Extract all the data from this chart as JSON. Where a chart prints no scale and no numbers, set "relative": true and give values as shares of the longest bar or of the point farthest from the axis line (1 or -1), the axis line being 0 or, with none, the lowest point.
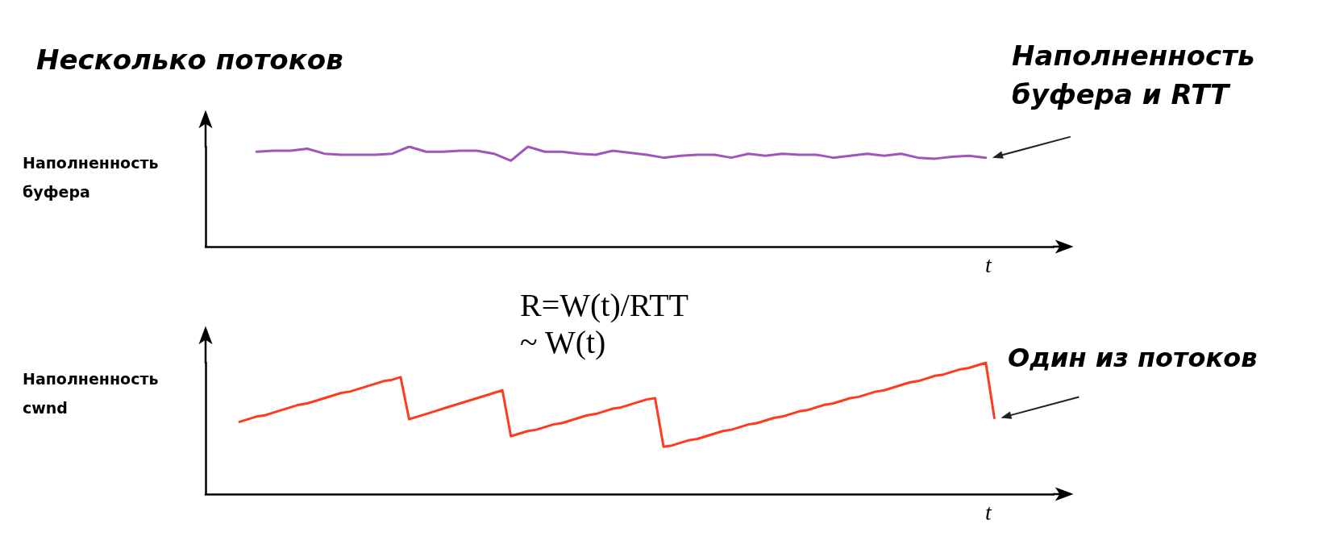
{
  "chart_data": [
    {
      "type": "line",
      "title": "Несколько потоков",
      "ylabel": "Наполненность буфера",
      "xlabel": "t",
      "relative": true,
      "tick_labels": false,
      "grid": false,
      "categories": [
        null,
        null,
        null,
        null,
        null,
        null,
        null,
        null,
        null,
        null,
        null,
        null,
        null,
        null,
        null,
        null,
        null,
        null,
        null,
        null,
        null,
        null,
        null,
        null,
        null,
        null,
        null,
        null,
        null,
        null,
        null,
        null,
        null,
        null,
        null,
        null,
        null,
        null,
        null,
        null,
        null,
        null,
        null,
        null,
        null,
        null,
        null,
        null,
        null,
        null,
        null
      ],
      "series": [
        {
          "color": "#a155b9",
          "values": [
            null,
            null,
            null,
            0.95,
            0.96,
            0.96,
            0.98,
            0.93,
            0.92,
            0.92,
            0.92,
            0.93,
            1,
            0.95,
            0.95,
            0.96,
            0.96,
            0.93,
            0.86,
            1,
            0.95,
            0.95,
            0.93,
            0.92,
            0.96,
            0.94,
            0.92,
            0.89,
            0.91,
            0.92,
            0.92,
            0.89,
            0.93,
            0.91,
            0.93,
            0.92,
            0.92,
            0.89,
            0.91,
            0.93,
            0.91,
            0.93,
            0.89,
            0.88,
            0.9,
            0.91,
            0.89,
            null,
            null,
            null,
            null
          ]
        }
      ],
      "annotations": [
        "Наполненность буфера и RTT"
      ]
    },
    {
      "type": "line",
      "ylabel": "Наполненность cwnd",
      "xlabel": "t",
      "relative": true,
      "tick_labels": false,
      "grid": false,
      "categories": [
        null,
        null,
        null,
        null,
        null,
        null,
        null,
        null,
        null,
        null,
        null,
        null,
        null,
        null,
        null,
        null,
        null,
        null,
        null,
        null,
        null,
        null,
        null,
        null,
        null,
        null,
        null,
        null,
        null,
        null,
        null,
        null,
        null,
        null,
        null,
        null,
        null,
        null,
        null,
        null,
        null,
        null,
        null,
        null,
        null,
        null,
        null,
        null,
        null,
        null,
        null,
        null,
        null,
        null,
        null,
        null,
        null,
        null,
        null,
        null,
        null,
        null,
        null,
        null,
        null,
        null,
        null,
        null,
        null,
        null,
        null,
        null,
        null,
        null,
        null,
        null,
        null,
        null,
        null,
        null,
        null,
        null,
        null,
        null,
        null,
        null,
        null,
        null,
        null,
        null,
        null,
        null,
        null,
        null,
        null,
        null,
        null,
        null,
        null,
        null,
        null
      ],
      "series": [
        {
          "color": "#ff3b1f",
          "values": [
            null,
            null,
            null,
            null,
            0.55,
            0.57,
            0.59,
            0.6,
            0.62,
            0.64,
            0.66,
            0.68,
            0.69,
            0.71,
            0.73,
            0.75,
            0.77,
            0.78,
            0.8,
            0.82,
            0.84,
            0.86,
            0.87,
            0.89,
            0.57,
            0.59,
            0.61,
            0.63,
            0.65,
            0.67,
            0.69,
            0.71,
            0.73,
            0.75,
            0.77,
            0.79,
            0.44,
            0.46,
            0.48,
            0.49,
            0.51,
            0.53,
            0.54,
            0.56,
            0.58,
            0.6,
            0.61,
            0.63,
            0.65,
            0.66,
            0.68,
            0.7,
            0.72,
            0.73,
            0.36,
            0.37,
            0.39,
            0.41,
            0.42,
            0.44,
            0.46,
            0.48,
            0.49,
            0.51,
            0.53,
            0.54,
            0.56,
            0.58,
            0.59,
            0.61,
            0.63,
            0.64,
            0.66,
            0.68,
            0.69,
            0.71,
            0.73,
            0.74,
            0.76,
            0.78,
            0.79,
            0.81,
            0.83,
            0.85,
            0.86,
            0.88,
            0.9,
            0.91,
            0.93,
            0.95,
            0.96,
            0.98,
            1,
            0.58,
            null,
            null,
            null,
            null,
            null,
            null,
            null
          ]
        }
      ],
      "annotations": [
        "R=W(t)/RTT\n~ W(t)",
        "Один из потоков"
      ]
    }
  ]
}
